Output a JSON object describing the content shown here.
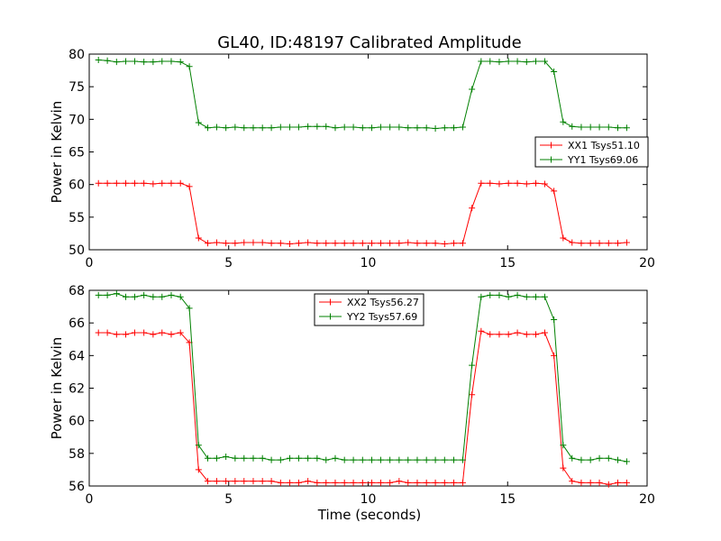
{
  "chart_data": [
    {
      "type": "line",
      "title": "GL40, ID:48197 Calibrated Amplitude",
      "xlabel": "",
      "ylabel": "Power in Kelvin",
      "xlim": [
        0,
        20
      ],
      "ylim": [
        50,
        80
      ],
      "xticks": [
        0,
        5,
        10,
        15,
        20
      ],
      "yticks": [
        50,
        55,
        60,
        65,
        70,
        75,
        80
      ],
      "legend_position": "center-right",
      "x": [
        0.33,
        0.65,
        0.98,
        1.31,
        1.63,
        1.96,
        2.29,
        2.61,
        2.94,
        3.27,
        3.59,
        3.92,
        4.25,
        4.57,
        4.9,
        5.23,
        5.55,
        5.88,
        6.21,
        6.53,
        6.86,
        7.19,
        7.51,
        7.84,
        8.17,
        8.49,
        8.82,
        9.15,
        9.47,
        9.8,
        10.13,
        10.45,
        10.78,
        11.11,
        11.43,
        11.76,
        12.09,
        12.41,
        12.74,
        13.07,
        13.39,
        13.72,
        14.05,
        14.37,
        14.7,
        15.03,
        15.35,
        15.68,
        16.01,
        16.33,
        16.66,
        16.99,
        17.31,
        17.64,
        17.97,
        18.29,
        18.62,
        18.95,
        19.27
      ],
      "series": [
        {
          "name": "XX1 Tsys51.10",
          "color": "#ff0000",
          "values": [
            60.2,
            60.2,
            60.2,
            60.2,
            60.2,
            60.2,
            60.1,
            60.2,
            60.2,
            60.2,
            59.7,
            51.8,
            51.0,
            51.1,
            51.0,
            51.0,
            51.1,
            51.1,
            51.1,
            51.0,
            51.0,
            50.9,
            51.0,
            51.1,
            51.0,
            51.0,
            51.0,
            51.0,
            51.0,
            51.0,
            51.0,
            51.0,
            51.0,
            51.0,
            51.1,
            51.0,
            51.0,
            51.0,
            50.9,
            51.0,
            51.0,
            56.4,
            60.2,
            60.2,
            60.1,
            60.2,
            60.2,
            60.1,
            60.2,
            60.1,
            59.0,
            51.8,
            51.1,
            51.0,
            51.0,
            51.0,
            51.0,
            51.0,
            51.1
          ]
        },
        {
          "name": "YY1 Tsys69.06",
          "color": "#008000",
          "values": [
            79.1,
            79.0,
            78.8,
            78.9,
            78.9,
            78.8,
            78.8,
            78.9,
            78.9,
            78.8,
            78.1,
            69.5,
            68.7,
            68.8,
            68.7,
            68.8,
            68.7,
            68.7,
            68.7,
            68.7,
            68.8,
            68.8,
            68.8,
            68.9,
            68.9,
            68.9,
            68.7,
            68.8,
            68.8,
            68.7,
            68.7,
            68.8,
            68.8,
            68.8,
            68.7,
            68.7,
            68.7,
            68.6,
            68.7,
            68.7,
            68.8,
            74.6,
            78.9,
            78.9,
            78.8,
            78.9,
            78.9,
            78.8,
            78.9,
            78.9,
            77.3,
            69.6,
            68.9,
            68.8,
            68.8,
            68.8,
            68.8,
            68.7,
            68.7
          ]
        }
      ]
    },
    {
      "type": "line",
      "title": "",
      "xlabel": "Time (seconds)",
      "ylabel": "Power in Kelvin",
      "xlim": [
        0,
        20
      ],
      "ylim": [
        56,
        68
      ],
      "xticks": [
        0,
        5,
        10,
        15,
        20
      ],
      "yticks": [
        56,
        58,
        60,
        62,
        64,
        66,
        68
      ],
      "legend_position": "top-center",
      "x": [
        0.33,
        0.65,
        0.98,
        1.31,
        1.63,
        1.96,
        2.29,
        2.61,
        2.94,
        3.27,
        3.59,
        3.92,
        4.25,
        4.57,
        4.9,
        5.23,
        5.55,
        5.88,
        6.21,
        6.53,
        6.86,
        7.19,
        7.51,
        7.84,
        8.17,
        8.49,
        8.82,
        9.15,
        9.47,
        9.8,
        10.13,
        10.45,
        10.78,
        11.11,
        11.43,
        11.76,
        12.09,
        12.41,
        12.74,
        13.07,
        13.39,
        13.72,
        14.05,
        14.37,
        14.7,
        15.03,
        15.35,
        15.68,
        16.01,
        16.33,
        16.66,
        16.99,
        17.31,
        17.64,
        17.97,
        18.29,
        18.62,
        18.95,
        19.27
      ],
      "series": [
        {
          "name": "XX2 Tsys56.27",
          "color": "#ff0000",
          "values": [
            65.4,
            65.4,
            65.3,
            65.3,
            65.4,
            65.4,
            65.3,
            65.4,
            65.3,
            65.4,
            64.8,
            57.0,
            56.3,
            56.3,
            56.3,
            56.3,
            56.3,
            56.3,
            56.3,
            56.3,
            56.2,
            56.2,
            56.2,
            56.3,
            56.2,
            56.2,
            56.2,
            56.2,
            56.2,
            56.2,
            56.2,
            56.2,
            56.2,
            56.3,
            56.2,
            56.2,
            56.2,
            56.2,
            56.2,
            56.2,
            56.2,
            61.6,
            65.5,
            65.3,
            65.3,
            65.3,
            65.4,
            65.3,
            65.3,
            65.4,
            64.0,
            57.1,
            56.3,
            56.2,
            56.2,
            56.2,
            56.1,
            56.2,
            56.2
          ]
        },
        {
          "name": "YY2 Tsys57.69",
          "color": "#008000",
          "values": [
            67.7,
            67.7,
            67.8,
            67.6,
            67.6,
            67.7,
            67.6,
            67.6,
            67.7,
            67.6,
            66.9,
            58.5,
            57.7,
            57.7,
            57.8,
            57.7,
            57.7,
            57.7,
            57.7,
            57.6,
            57.6,
            57.7,
            57.7,
            57.7,
            57.7,
            57.6,
            57.7,
            57.6,
            57.6,
            57.6,
            57.6,
            57.6,
            57.6,
            57.6,
            57.6,
            57.6,
            57.6,
            57.6,
            57.6,
            57.6,
            57.6,
            63.4,
            67.6,
            67.7,
            67.7,
            67.6,
            67.7,
            67.6,
            67.6,
            67.6,
            66.2,
            58.5,
            57.7,
            57.6,
            57.6,
            57.7,
            57.7,
            57.6,
            57.5
          ]
        }
      ]
    }
  ]
}
